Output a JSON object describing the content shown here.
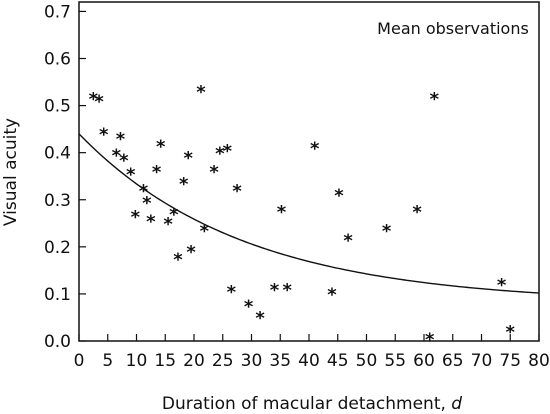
{
  "chart_data": {
    "type": "scatter",
    "title": "",
    "xlabel_prefix": "Duration of macular detachment, ",
    "xlabel_var": "d",
    "ylabel": "Visual acuity",
    "annotation": "Mean observations",
    "xlim": [
      0,
      80
    ],
    "ylim": [
      0,
      0.72
    ],
    "xticks": [
      "0",
      "5",
      "10",
      "15",
      "20",
      "25",
      "30",
      "35",
      "40",
      "45",
      "50",
      "55",
      "60",
      "65",
      "70",
      "75",
      "80"
    ],
    "yticks": [
      "0.0",
      "0.1",
      "0.2",
      "0.3",
      "0.4",
      "0.5",
      "0.6",
      "0.7"
    ],
    "grid": false,
    "points": [
      [
        2.5,
        0.52
      ],
      [
        3.5,
        0.515
      ],
      [
        4.3,
        0.445
      ],
      [
        6.5,
        0.4
      ],
      [
        7.2,
        0.435
      ],
      [
        7.8,
        0.39
      ],
      [
        9.0,
        0.36
      ],
      [
        9.8,
        0.27
      ],
      [
        11.2,
        0.325
      ],
      [
        11.8,
        0.3
      ],
      [
        12.5,
        0.26
      ],
      [
        13.5,
        0.365
      ],
      [
        14.2,
        0.42
      ],
      [
        15.5,
        0.255
      ],
      [
        16.5,
        0.275
      ],
      [
        17.2,
        0.18
      ],
      [
        18.2,
        0.34
      ],
      [
        19.0,
        0.395
      ],
      [
        19.5,
        0.195
      ],
      [
        21.2,
        0.535
      ],
      [
        21.8,
        0.24
      ],
      [
        23.5,
        0.365
      ],
      [
        24.5,
        0.405
      ],
      [
        25.8,
        0.41
      ],
      [
        26.5,
        0.11
      ],
      [
        27.5,
        0.325
      ],
      [
        29.5,
        0.08
      ],
      [
        31.5,
        0.055
      ],
      [
        34.0,
        0.115
      ],
      [
        35.2,
        0.28
      ],
      [
        36.2,
        0.115
      ],
      [
        41.0,
        0.415
      ],
      [
        44.0,
        0.105
      ],
      [
        45.2,
        0.315
      ],
      [
        46.8,
        0.22
      ],
      [
        53.5,
        0.24
      ],
      [
        58.8,
        0.28
      ],
      [
        61.0,
        0.01
      ],
      [
        61.8,
        0.52
      ],
      [
        73.5,
        0.125
      ],
      [
        75.0,
        0.025
      ]
    ],
    "fit_curve": {
      "form": "exponential decay",
      "y0": 0.44,
      "asymptote": 0.08,
      "rate": 0.035
    }
  }
}
